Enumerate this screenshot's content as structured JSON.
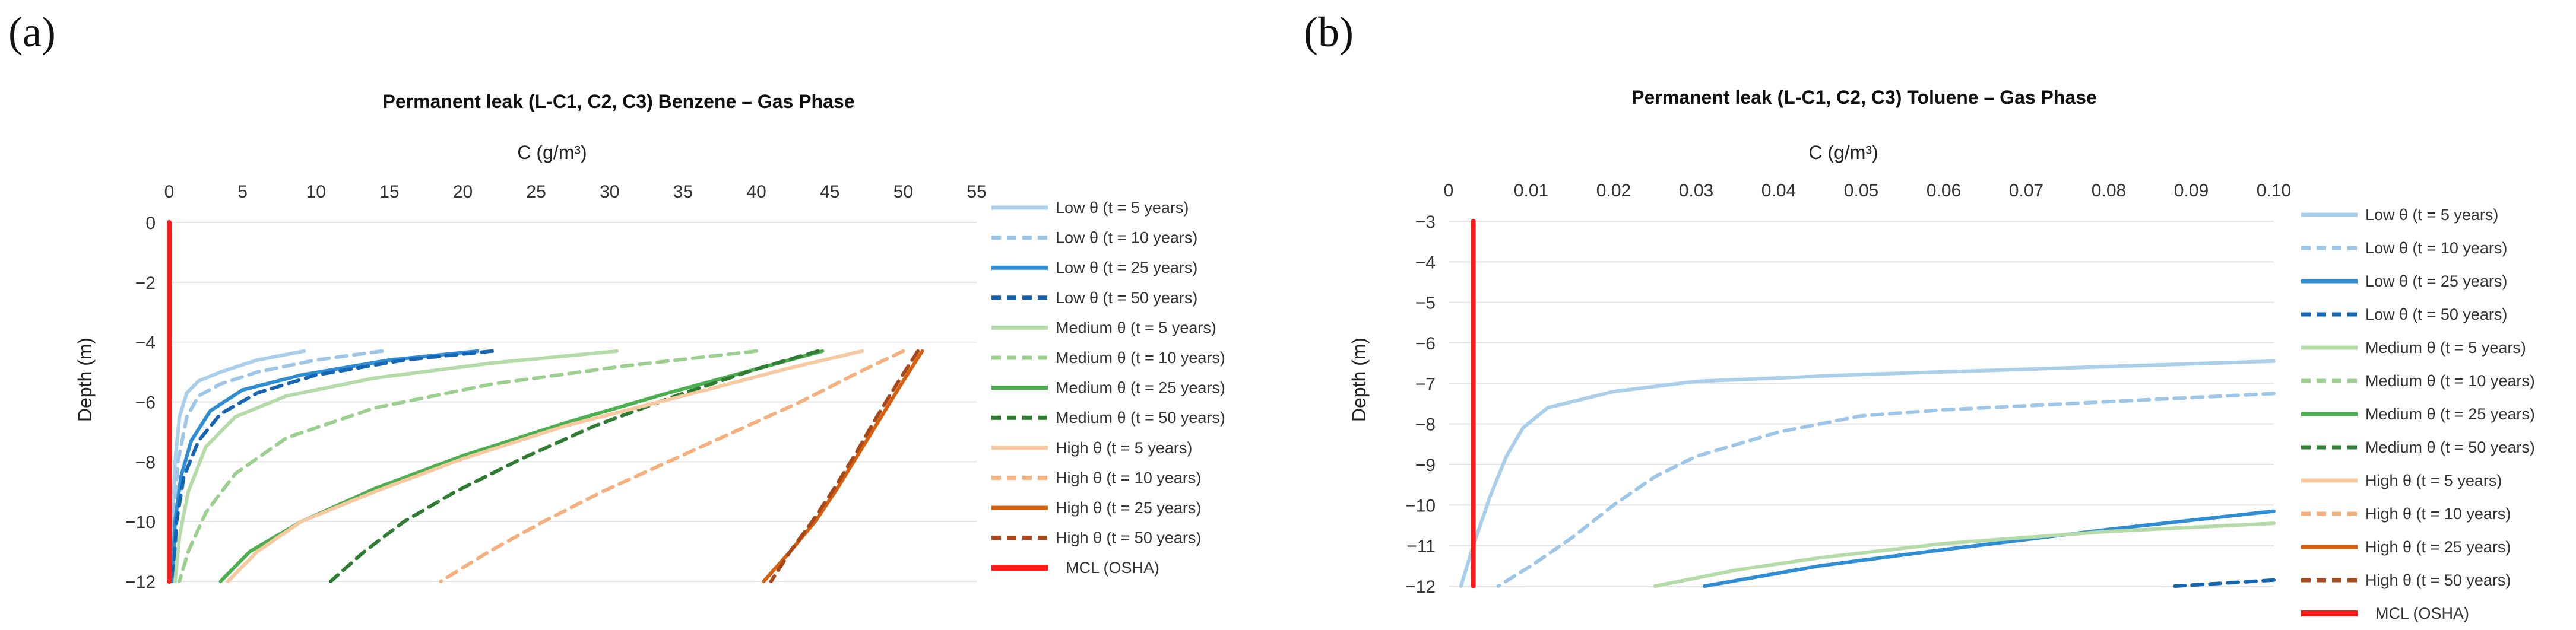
{
  "chart_data": [
    {
      "type": "line",
      "panel_label": "(a)",
      "title": "Permanent leak (L-C1, C2, C3) Benzene – Gas Phase",
      "xlabel": "C (g/m³)",
      "ylabel": "Depth (m)",
      "xlim": [
        0,
        55
      ],
      "ylim": [
        -12,
        0
      ],
      "x_ticks": [
        0,
        5,
        10,
        15,
        20,
        25,
        30,
        35,
        40,
        45,
        50,
        55
      ],
      "x_tick_labels": [
        "0",
        "5",
        "10",
        "15",
        "20",
        "25",
        "30",
        "35",
        "40",
        "45",
        "50",
        "55"
      ],
      "y_ticks": [
        0,
        -2,
        -4,
        -6,
        -8,
        -10,
        -12
      ],
      "y_tick_labels": [
        "0",
        "−2",
        "−4",
        "−6",
        "−8",
        "−10",
        "−12"
      ],
      "x_axis_position": "top",
      "legend_position": "right",
      "series": [
        {
          "name": "Low θ (t = 5 years)",
          "color": "#a9cfea",
          "dash": false,
          "points": [
            [
              9.2,
              -4.3
            ],
            [
              6,
              -4.6
            ],
            [
              3.5,
              -5
            ],
            [
              2,
              -5.3
            ],
            [
              1.2,
              -5.7
            ],
            [
              0.7,
              -6.5
            ],
            [
              0.4,
              -8
            ],
            [
              0.2,
              -10
            ],
            [
              0.1,
              -12
            ]
          ]
        },
        {
          "name": "Low θ (t = 10 years)",
          "color": "#9dc6e8",
          "dash": true,
          "points": [
            [
              14.5,
              -4.3
            ],
            [
              10,
              -4.6
            ],
            [
              6,
              -5
            ],
            [
              3.5,
              -5.4
            ],
            [
              2,
              -5.8
            ],
            [
              1.2,
              -6.5
            ],
            [
              0.6,
              -8
            ],
            [
              0.3,
              -10
            ],
            [
              0.15,
              -12
            ]
          ]
        },
        {
          "name": "Low θ (t = 25 years)",
          "color": "#2f8dd3",
          "dash": false,
          "points": [
            [
              21,
              -4.3
            ],
            [
              15,
              -4.6
            ],
            [
              9,
              -5.1
            ],
            [
              5,
              -5.6
            ],
            [
              2.8,
              -6.3
            ],
            [
              1.5,
              -7.3
            ],
            [
              0.8,
              -8.5
            ],
            [
              0.4,
              -10
            ],
            [
              0.2,
              -12
            ]
          ]
        },
        {
          "name": "Low θ (t = 50 years)",
          "color": "#1565b3",
          "dash": true,
          "points": [
            [
              22,
              -4.3
            ],
            [
              16,
              -4.6
            ],
            [
              10,
              -5.1
            ],
            [
              6,
              -5.7
            ],
            [
              3.5,
              -6.4
            ],
            [
              2,
              -7.3
            ],
            [
              1,
              -8.5
            ],
            [
              0.5,
              -10
            ],
            [
              0.25,
              -12
            ]
          ]
        },
        {
          "name": "Medium θ (t = 5 years)",
          "color": "#b5dca8",
          "dash": false,
          "points": [
            [
              30.5,
              -4.3
            ],
            [
              22,
              -4.7
            ],
            [
              14,
              -5.2
            ],
            [
              8,
              -5.8
            ],
            [
              4.5,
              -6.5
            ],
            [
              2.5,
              -7.5
            ],
            [
              1.3,
              -9
            ],
            [
              0.7,
              -10.5
            ],
            [
              0.4,
              -12
            ]
          ]
        },
        {
          "name": "Medium θ (t = 10 years)",
          "color": "#9cd08e",
          "dash": true,
          "points": [
            [
              40,
              -4.3
            ],
            [
              31,
              -4.8
            ],
            [
              22,
              -5.4
            ],
            [
              14,
              -6.2
            ],
            [
              8,
              -7.2
            ],
            [
              4.5,
              -8.4
            ],
            [
              2.5,
              -9.7
            ],
            [
              1.3,
              -11
            ],
            [
              0.7,
              -12
            ]
          ]
        },
        {
          "name": "Medium θ (t = 25 years)",
          "color": "#4caf50",
          "dash": false,
          "points": [
            [
              44.5,
              -4.3
            ],
            [
              40,
              -4.9
            ],
            [
              34,
              -5.7
            ],
            [
              27,
              -6.7
            ],
            [
              20,
              -7.8
            ],
            [
              14,
              -8.9
            ],
            [
              9,
              -10
            ],
            [
              5.5,
              -11
            ],
            [
              3.5,
              -12
            ]
          ]
        },
        {
          "name": "Medium θ (t = 50 years)",
          "color": "#2e7d32",
          "dash": true,
          "points": [
            [
              44.2,
              -4.3
            ],
            [
              40,
              -4.9
            ],
            [
              34.5,
              -5.8
            ],
            [
              29,
              -6.8
            ],
            [
              24,
              -7.9
            ],
            [
              19.5,
              -9
            ],
            [
              16,
              -10
            ],
            [
              13.3,
              -11
            ],
            [
              11,
              -12
            ]
          ]
        },
        {
          "name": "High θ (t = 5 years)",
          "color": "#f7c9a0",
          "dash": false,
          "points": [
            [
              47.2,
              -4.3
            ],
            [
              42,
              -4.9
            ],
            [
              35,
              -5.8
            ],
            [
              27,
              -6.8
            ],
            [
              20,
              -7.9
            ],
            [
              14,
              -9
            ],
            [
              9,
              -10
            ],
            [
              6,
              -11
            ],
            [
              4,
              -12
            ]
          ]
        },
        {
          "name": "High θ (t = 10 years)",
          "color": "#f5b07e",
          "dash": true,
          "points": [
            [
              50,
              -4.3
            ],
            [
              47,
              -5
            ],
            [
              43,
              -6
            ],
            [
              38.5,
              -7
            ],
            [
              34,
              -8
            ],
            [
              29.5,
              -9
            ],
            [
              25.5,
              -10
            ],
            [
              21.8,
              -11
            ],
            [
              18.5,
              -12
            ]
          ]
        },
        {
          "name": "High θ (t = 25 years)",
          "color": "#d6600e",
          "dash": false,
          "points": [
            [
              51.3,
              -4.3
            ],
            [
              50,
              -5.3
            ],
            [
              48.5,
              -6.5
            ],
            [
              47,
              -7.7
            ],
            [
              45.5,
              -8.9
            ],
            [
              44,
              -10
            ],
            [
              42.3,
              -11
            ],
            [
              40.5,
              -12
            ]
          ]
        },
        {
          "name": "High θ (t = 50 years)",
          "color": "#a8481a",
          "dash": true,
          "points": [
            [
              51,
              -4.3
            ],
            [
              49.7,
              -5.3
            ],
            [
              48.2,
              -6.5
            ],
            [
              46.8,
              -7.7
            ],
            [
              45.3,
              -8.9
            ],
            [
              43.8,
              -10
            ],
            [
              42.3,
              -11
            ],
            [
              41,
              -12
            ]
          ]
        },
        {
          "name": "MCL (OSHA)",
          "color": "#ff1a1a",
          "dash": false,
          "points": [
            [
              0,
              0
            ],
            [
              0,
              -12
            ]
          ]
        }
      ]
    },
    {
      "type": "line",
      "panel_label": "(b)",
      "title": "Permanent leak (L-C1, C2, C3) Toluene – Gas Phase",
      "xlabel": "C (g/m³)",
      "ylabel": "Depth (m)",
      "xlim": [
        0,
        0.1
      ],
      "ylim": [
        -12,
        -3
      ],
      "x_ticks": [
        0,
        0.01,
        0.02,
        0.03,
        0.04,
        0.05,
        0.06,
        0.07,
        0.08,
        0.09,
        0.1
      ],
      "x_tick_labels": [
        "0",
        "0.01",
        "0.02",
        "0.03",
        "0.04",
        "0.05",
        "0.06",
        "0.07",
        "0.08",
        "0.09",
        "0.10"
      ],
      "y_ticks": [
        -3,
        -4,
        -5,
        -6,
        -7,
        -8,
        -9,
        -10,
        -11,
        -12
      ],
      "y_tick_labels": [
        "−3",
        "−4",
        "−5",
        "−6",
        "−7",
        "−8",
        "−9",
        "−10",
        "−11",
        "−12"
      ],
      "x_axis_position": "top",
      "legend_position": "right",
      "series": [
        {
          "name": "Low θ (t = 5 years)",
          "color": "#a9cfea",
          "dash": false,
          "points": [
            [
              0.1,
              -6.45
            ],
            [
              0.07,
              -6.65
            ],
            [
              0.05,
              -6.78
            ],
            [
              0.03,
              -6.95
            ],
            [
              0.02,
              -7.2
            ],
            [
              0.012,
              -7.6
            ],
            [
              0.009,
              -8.1
            ],
            [
              0.007,
              -8.8
            ],
            [
              0.005,
              -9.8
            ],
            [
              0.003,
              -11
            ],
            [
              0.0015,
              -12
            ]
          ]
        },
        {
          "name": "Low θ (t = 10 years)",
          "color": "#9dc6e8",
          "dash": true,
          "points": [
            [
              0.1,
              -7.25
            ],
            [
              0.08,
              -7.45
            ],
            [
              0.06,
              -7.65
            ],
            [
              0.05,
              -7.8
            ],
            [
              0.04,
              -8.2
            ],
            [
              0.03,
              -8.8
            ],
            [
              0.025,
              -9.3
            ],
            [
              0.02,
              -10
            ],
            [
              0.015,
              -10.8
            ],
            [
              0.01,
              -11.5
            ],
            [
              0.006,
              -12
            ]
          ]
        },
        {
          "name": "Low θ (t = 25 years)",
          "color": "#2f8dd3",
          "dash": false,
          "points": [
            [
              0.1,
              -10.15
            ],
            [
              0.08,
              -10.6
            ],
            [
              0.06,
              -11.1
            ],
            [
              0.045,
              -11.5
            ],
            [
              0.031,
              -12
            ]
          ]
        },
        {
          "name": "Low θ (t = 50 years)",
          "color": "#1565b3",
          "dash": true,
          "points": [
            [
              0.1,
              -11.85
            ],
            [
              0.088,
              -12
            ]
          ]
        },
        {
          "name": "Medium θ (t = 5 years)",
          "color": "#b5dca8",
          "dash": false,
          "points": [
            [
              0.1,
              -10.45
            ],
            [
              0.08,
              -10.65
            ],
            [
              0.06,
              -10.95
            ],
            [
              0.045,
              -11.3
            ],
            [
              0.035,
              -11.6
            ],
            [
              0.025,
              -12
            ]
          ]
        },
        {
          "name": "Medium θ (t = 10 years)",
          "color": "#9cd08e",
          "dash": true,
          "points": []
        },
        {
          "name": "Medium θ (t = 25 years)",
          "color": "#4caf50",
          "dash": false,
          "points": []
        },
        {
          "name": "Medium θ (t = 50 years)",
          "color": "#2e7d32",
          "dash": true,
          "points": []
        },
        {
          "name": "High θ (t = 5 years)",
          "color": "#f7c9a0",
          "dash": false,
          "points": []
        },
        {
          "name": "High θ (t = 10 years)",
          "color": "#f5b07e",
          "dash": true,
          "points": []
        },
        {
          "name": "High θ (t = 25 years)",
          "color": "#d6600e",
          "dash": false,
          "points": []
        },
        {
          "name": "High θ (t = 50 years)",
          "color": "#a8481a",
          "dash": true,
          "points": []
        },
        {
          "name": "MCL (OSHA)",
          "color": "#ff1a1a",
          "dash": false,
          "points": [
            [
              0.003,
              -3
            ],
            [
              0.003,
              -12
            ]
          ]
        }
      ]
    }
  ]
}
